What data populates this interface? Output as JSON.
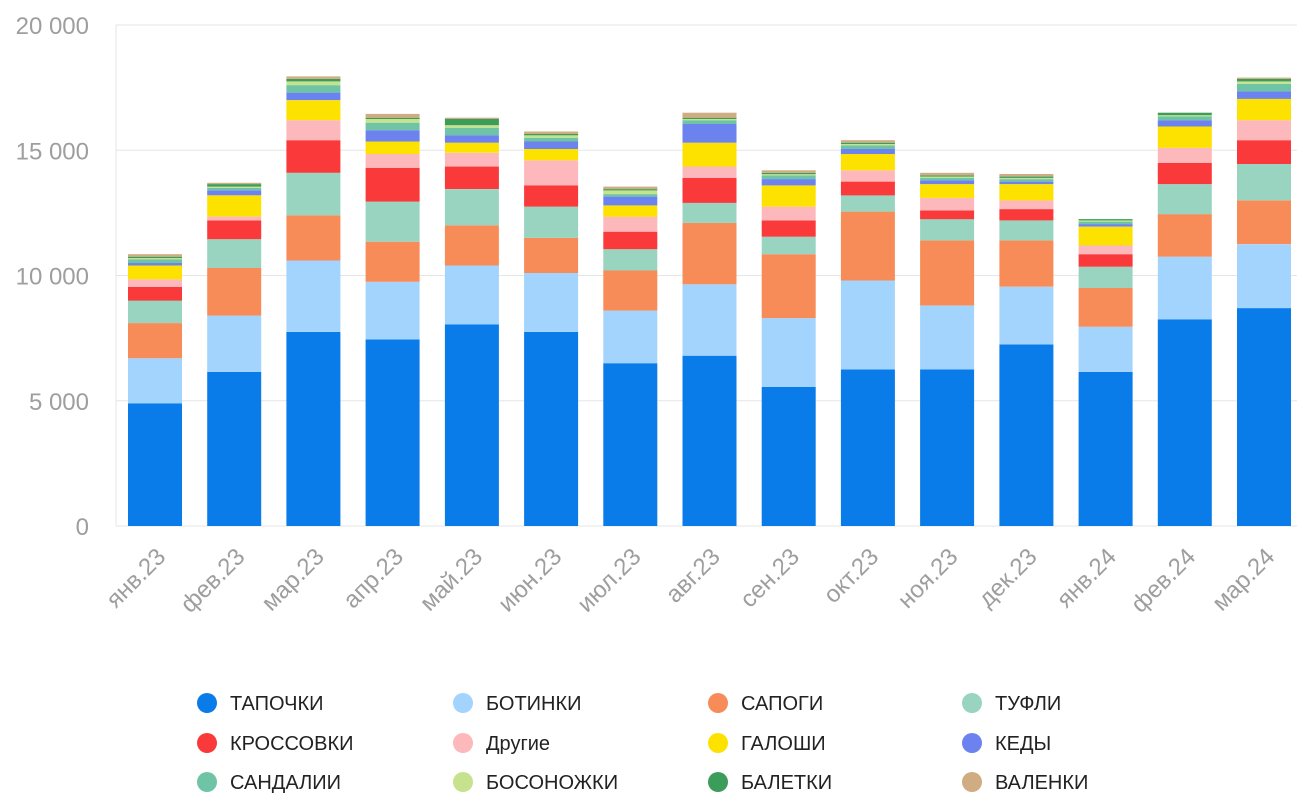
{
  "chart_data": {
    "type": "bar",
    "stacked": true,
    "title": "",
    "xlabel": "",
    "ylabel": "",
    "ylim": [
      0,
      20000
    ],
    "yticks": [
      0,
      5000,
      10000,
      15000,
      20000
    ],
    "ytick_labels": [
      "0",
      "5 000",
      "10 000",
      "15 000",
      "20 000"
    ],
    "grid": true,
    "legend_position": "bottom",
    "categories": [
      "янв.23",
      "фев.23",
      "мар.23",
      "апр.23",
      "май.23",
      "июн.23",
      "июл.23",
      "авг.23",
      "сен.23",
      "окт.23",
      "ноя.23",
      "дек.23",
      "янв.24",
      "фев.24",
      "мар.24"
    ],
    "series": [
      {
        "name": "ТАПОЧКИ",
        "color": "#0a7cea",
        "values": [
          4900,
          6150,
          7750,
          7450,
          8050,
          7750,
          6500,
          6800,
          5550,
          6250,
          6250,
          7250,
          6150,
          8250,
          8700
        ]
      },
      {
        "name": "БОТИНКИ",
        "color": "#a3d4fd",
        "values": [
          1800,
          2250,
          2850,
          2300,
          2350,
          2350,
          2100,
          2850,
          2750,
          3550,
          2550,
          2300,
          1800,
          2500,
          2550
        ]
      },
      {
        "name": "САПОГИ",
        "color": "#f88c58",
        "values": [
          1400,
          1900,
          1800,
          1600,
          1600,
          1400,
          1600,
          2450,
          2550,
          2750,
          2600,
          1850,
          1550,
          1700,
          1750
        ]
      },
      {
        "name": "ТУФЛИ",
        "color": "#98d4c0",
        "values": [
          900,
          1150,
          1700,
          1600,
          1450,
          1250,
          850,
          800,
          700,
          650,
          850,
          800,
          850,
          1200,
          1450
        ]
      },
      {
        "name": "КРОССОВКИ",
        "color": "#fa3a3a",
        "values": [
          550,
          750,
          1300,
          1350,
          900,
          850,
          700,
          1000,
          650,
          550,
          350,
          450,
          500,
          850,
          950
        ]
      },
      {
        "name": "Другие",
        "color": "#fcb8bb",
        "values": [
          300,
          150,
          800,
          550,
          550,
          1000,
          600,
          450,
          550,
          450,
          500,
          350,
          350,
          600,
          800
        ]
      },
      {
        "name": "ГАЛОШИ",
        "color": "#fde200",
        "values": [
          550,
          850,
          800,
          500,
          400,
          450,
          450,
          950,
          850,
          650,
          550,
          650,
          750,
          850,
          850
        ]
      },
      {
        "name": "КЕДЫ",
        "color": "#6b82ef",
        "values": [
          100,
          200,
          300,
          450,
          300,
          300,
          350,
          750,
          250,
          200,
          150,
          100,
          100,
          250,
          300
        ]
      },
      {
        "name": "САНДАЛИИ",
        "color": "#70c4a6",
        "values": [
          150,
          100,
          300,
          300,
          300,
          150,
          100,
          150,
          150,
          150,
          100,
          100,
          100,
          150,
          300
        ]
      },
      {
        "name": "БОСОНОЖКИ",
        "color": "#c6e28c",
        "values": [
          50,
          50,
          150,
          150,
          100,
          100,
          150,
          50,
          50,
          50,
          50,
          50,
          50,
          50,
          100
        ]
      },
      {
        "name": "БАЛЕТКИ",
        "color": "#3c9c5a",
        "values": [
          50,
          100,
          100,
          50,
          250,
          50,
          50,
          50,
          50,
          50,
          50,
          50,
          50,
          100,
          100
        ]
      },
      {
        "name": "ВАЛЕНКИ",
        "color": "#cfac82",
        "values": [
          100,
          50,
          100,
          150,
          50,
          100,
          100,
          200,
          100,
          100,
          100,
          100,
          0,
          0,
          50
        ]
      }
    ]
  }
}
